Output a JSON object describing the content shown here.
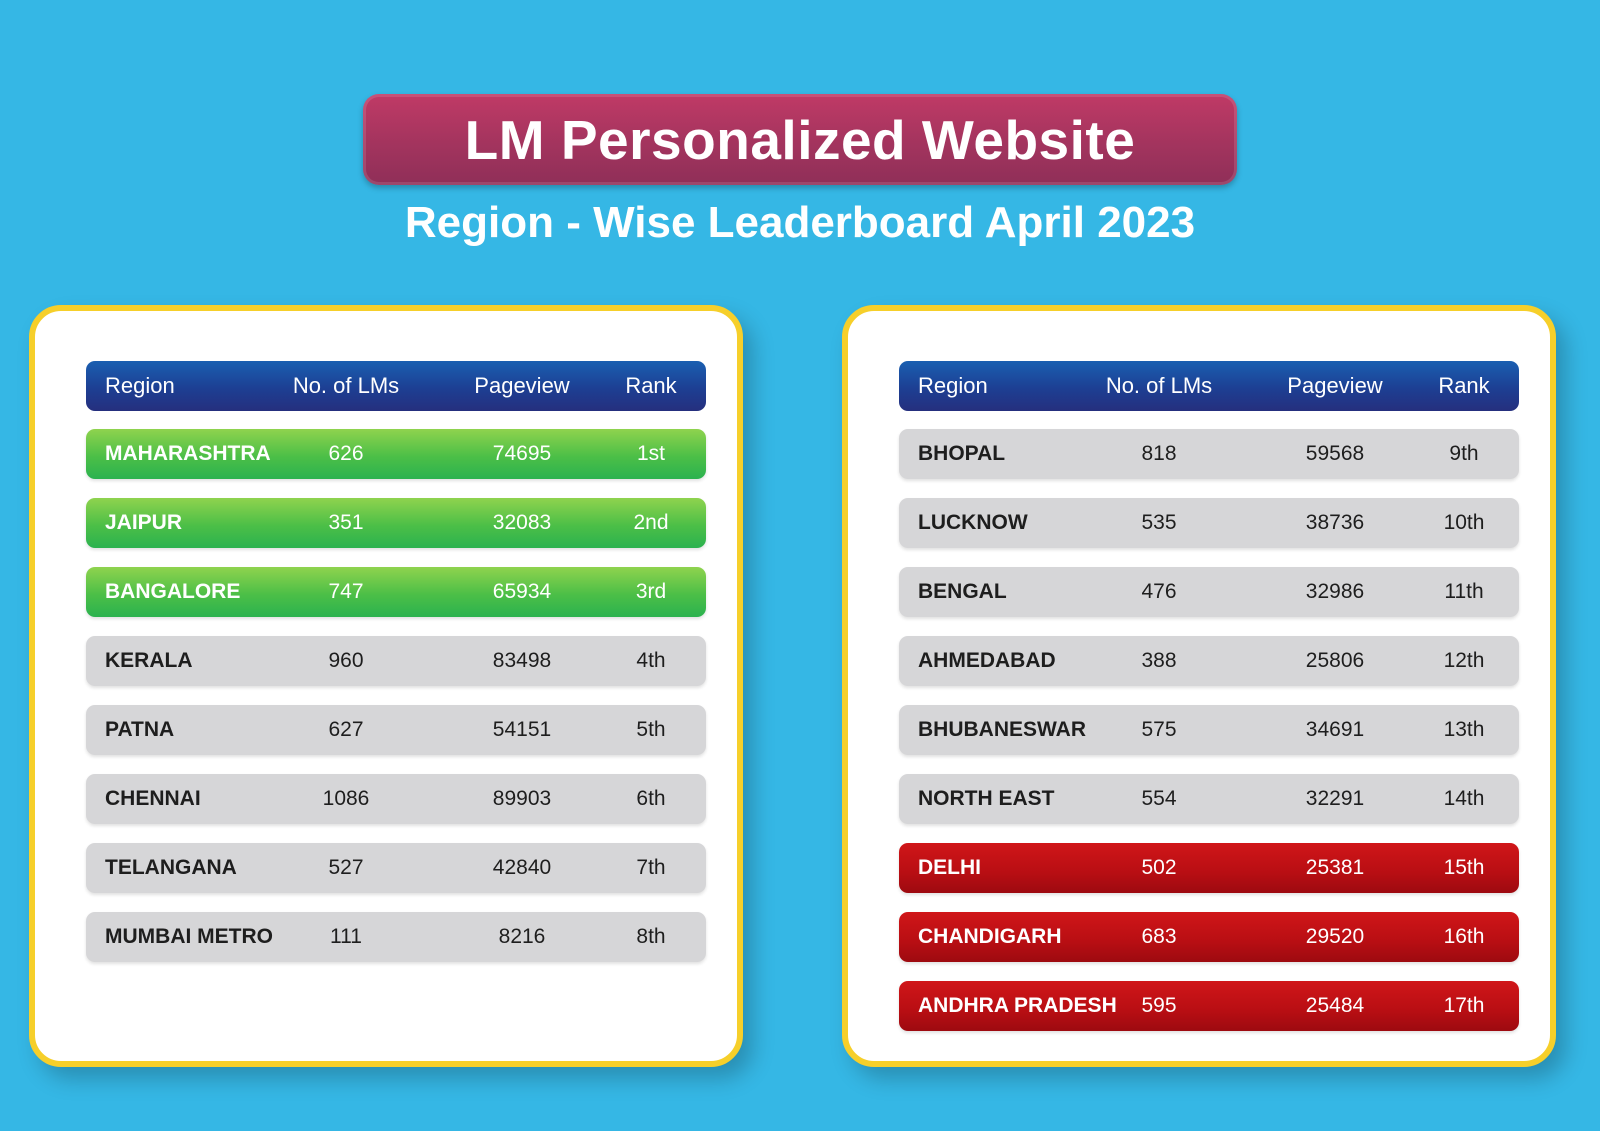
{
  "header": {
    "title": "LM Personalized Website",
    "subtitle": "Region - Wise Leaderboard April 2023"
  },
  "columns": {
    "region": "Region",
    "lms": "No. of LMs",
    "pageview": "Pageview",
    "rank": "Rank"
  },
  "colors": {
    "background": "#35b7e5",
    "title_pill": "#a3345e",
    "card_border": "#f6cf2a",
    "header_row": "#1d3f93",
    "top_rank": "#4cbf47",
    "middle_rank": "#d6d6d8",
    "bottom_rank": "#b80e13"
  },
  "left_table": {
    "rows": [
      {
        "region": "MAHARASHTRA",
        "lms": "626",
        "pageview": "74695",
        "rank": "1st",
        "status": "green"
      },
      {
        "region": "JAIPUR",
        "lms": "351",
        "pageview": "32083",
        "rank": "2nd",
        "status": "green"
      },
      {
        "region": "BANGALORE",
        "lms": "747",
        "pageview": "65934",
        "rank": "3rd",
        "status": "green"
      },
      {
        "region": "KERALA",
        "lms": "960",
        "pageview": "83498",
        "rank": "4th",
        "status": "gray"
      },
      {
        "region": "PATNA",
        "lms": "627",
        "pageview": "54151",
        "rank": "5th",
        "status": "gray"
      },
      {
        "region": "CHENNAI",
        "lms": "1086",
        "pageview": "89903",
        "rank": "6th",
        "status": "gray"
      },
      {
        "region": "TELANGANA",
        "lms": "527",
        "pageview": "42840",
        "rank": "7th",
        "status": "gray"
      },
      {
        "region": "MUMBAI METRO",
        "lms": "111",
        "pageview": "8216",
        "rank": "8th",
        "status": "gray"
      }
    ]
  },
  "right_table": {
    "rows": [
      {
        "region": "BHOPAL",
        "lms": "818",
        "pageview": "59568",
        "rank": "9th",
        "status": "gray"
      },
      {
        "region": "LUCKNOW",
        "lms": "535",
        "pageview": "38736",
        "rank": "10th",
        "status": "gray"
      },
      {
        "region": "BENGAL",
        "lms": "476",
        "pageview": "32986",
        "rank": "11th",
        "status": "gray"
      },
      {
        "region": "AHMEDABAD",
        "lms": "388",
        "pageview": "25806",
        "rank": "12th",
        "status": "gray"
      },
      {
        "region": "BHUBANESWAR",
        "lms": "575",
        "pageview": "34691",
        "rank": "13th",
        "status": "gray"
      },
      {
        "region": "NORTH EAST",
        "lms": "554",
        "pageview": "32291",
        "rank": "14th",
        "status": "gray"
      },
      {
        "region": "DELHI",
        "lms": "502",
        "pageview": "25381",
        "rank": "15th",
        "status": "red"
      },
      {
        "region": "CHANDIGARH",
        "lms": "683",
        "pageview": "29520",
        "rank": "16th",
        "status": "red"
      },
      {
        "region": "ANDHRA PRADESH",
        "lms": "595",
        "pageview": "25484",
        "rank": "17th",
        "status": "red"
      }
    ]
  }
}
